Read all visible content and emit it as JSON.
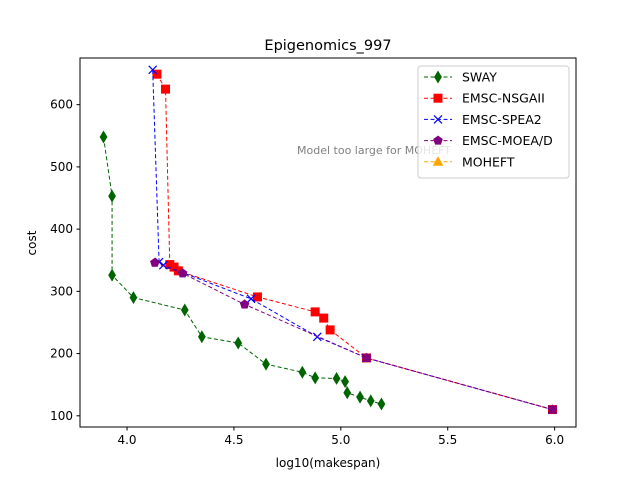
{
  "chart_data": {
    "type": "line",
    "title": "Epigenomics_997",
    "xlabel": "log10(makespan)",
    "ylabel": "cost",
    "xlim": [
      3.78,
      6.1
    ],
    "ylim": [
      82,
      675
    ],
    "xticks": [
      4.0,
      4.5,
      5.0,
      5.5,
      6.0
    ],
    "xtick_labels": [
      "4.0",
      "4.5",
      "5.0",
      "5.5",
      "6.0"
    ],
    "yticks": [
      100,
      200,
      300,
      400,
      500,
      600
    ],
    "ytick_labels": [
      "100",
      "200",
      "300",
      "400",
      "500",
      "600"
    ],
    "grid": false,
    "legend_position": "top-right",
    "annotation": "Model too large for MOHEFT",
    "series": [
      {
        "name": "SWAY",
        "color": "#006400",
        "marker": "thin_diamond",
        "x": [
          3.89,
          3.93,
          3.93,
          4.03,
          4.27,
          4.35,
          4.52,
          4.65,
          4.82,
          4.88,
          4.98,
          5.02,
          5.03,
          5.09,
          5.14,
          5.19
        ],
        "y": [
          548,
          453,
          326,
          290,
          270,
          227,
          217,
          183,
          170,
          161,
          160,
          155,
          137,
          130,
          124,
          119
        ]
      },
      {
        "name": "EMSC-NSGAII",
        "color": "#ff0000",
        "marker": "square",
        "x": [
          4.14,
          4.18,
          4.2,
          4.22,
          4.24,
          4.61,
          4.88,
          4.92,
          4.95,
          5.12,
          5.99
        ],
        "y": [
          649,
          625,
          343,
          339,
          333,
          291,
          267,
          257,
          238,
          193,
          110
        ]
      },
      {
        "name": "EMSC-SPEA2",
        "color": "#0000ff",
        "marker": "x",
        "x": [
          4.12,
          4.15,
          4.17,
          4.58,
          4.89,
          5.12,
          5.99
        ],
        "y": [
          656,
          347,
          342,
          288,
          227,
          193,
          110
        ]
      },
      {
        "name": "EMSC-MOEA/D",
        "color": "#800080",
        "marker": "pentagon",
        "x": [
          4.13,
          4.26,
          4.55,
          5.12,
          5.99
        ],
        "y": [
          346,
          329,
          279,
          193,
          110
        ]
      },
      {
        "name": "MOHEFT",
        "color": "#ffa500",
        "marker": "triangle",
        "x": [],
        "y": []
      }
    ]
  }
}
